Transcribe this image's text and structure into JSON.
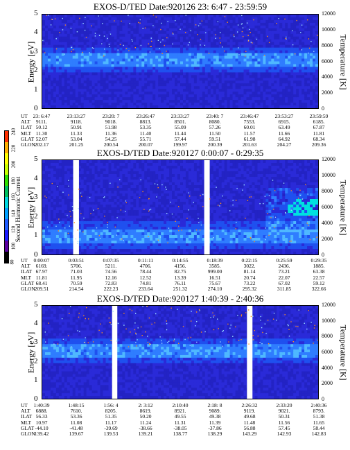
{
  "colorbar": {
    "title": "Second Harmonic Current",
    "ticks": [
      "80",
      "100",
      "120",
      "140",
      "160",
      "180",
      "200",
      "220",
      "240"
    ],
    "colors": [
      "#000000",
      "#5a00a0",
      "#1a1aff",
      "#1f5cff",
      "#00a0ff",
      "#00d8e0",
      "#00c060",
      "#30e000",
      "#c8ff00",
      "#ffff00",
      "#ffb000",
      "#ff3000"
    ]
  },
  "panels": [
    {
      "title": "EXOS-D/TED   Date:920126  23: 6:47 - 23:59:59",
      "ylabel": "Energy [eV]",
      "rlabel": "Temperature [K]",
      "yticks": [
        "0",
        "1",
        "2",
        "3",
        "4",
        "5"
      ],
      "rticks": [
        "0",
        "2000",
        "4000",
        "6000",
        "8000",
        "10000",
        "12000"
      ],
      "orbit_labels": [
        "UT",
        "ALT",
        "ILAT",
        "MLT",
        "GLAT",
        "GLON"
      ],
      "orbit_columns": [
        [
          "23: 6:47",
          "9111.",
          "50.12",
          "11.30",
          "52.07",
          "202.17"
        ],
        [
          "23:13:27",
          "9118.",
          "50.91",
          "11.33",
          "53.04",
          "201.25"
        ],
        [
          "23:20: 7",
          "9018.",
          "51.98",
          "11.36",
          "54.25",
          "200.54"
        ],
        [
          "23:26:47",
          "8813.",
          "53.35",
          "11.40",
          "55.71",
          "200.07"
        ],
        [
          "23:33:27",
          "8501.",
          "55.09",
          "11.44",
          "57.44",
          "199.97"
        ],
        [
          "23:40: 7",
          "8080.",
          "57.26",
          "11.50",
          "59.51",
          "200.39"
        ],
        [
          "23:46:47",
          "7553.",
          "60.01",
          "11.57",
          "61.98",
          "201.63"
        ],
        [
          "23:53:27",
          "6915.",
          "63.49",
          "11.66",
          "64.92",
          "204.27"
        ],
        [
          "23:59:59",
          "6185.",
          "67.87",
          "11.81",
          "68.34",
          "209.36"
        ]
      ]
    },
    {
      "title": "EXOS-D/TED   Date:920127  0:00:07 - 0:29:35",
      "ylabel": "Energy [eV]",
      "rlabel": "Temperature [K]",
      "yticks": [
        "0",
        "1",
        "2",
        "3",
        "4",
        "5"
      ],
      "rticks": [
        "0",
        "2000",
        "4000",
        "6000",
        "8000",
        "10000",
        "12000"
      ],
      "orbit_labels": [
        "UT",
        "ALT",
        "ILAT",
        "MLT",
        "GLAT",
        "GLON"
      ],
      "orbit_columns": [
        [
          "0:00:07",
          "6169.",
          "67.97",
          "11.81",
          "68.41",
          "209.51"
        ],
        [
          "0:03:51",
          "5706.",
          "71.03",
          "11.95",
          "70.59",
          "214.54"
        ],
        [
          "0:07:35",
          "5211.",
          "74.56",
          "12.16",
          "72.83",
          "222.23"
        ],
        [
          "0:11:11",
          "4706.",
          "78.44",
          "12.52",
          "74.81",
          "233.64"
        ],
        [
          "0:14:55",
          "4156.",
          "82.75",
          "13.39",
          "76.11",
          "251.32"
        ],
        [
          "0:18:39",
          "3585.",
          "999.00",
          "16.51",
          "75.67",
          "274.10"
        ],
        [
          "0:22:15",
          "3022.",
          "81.14",
          "20.74",
          "73.22",
          "295.32"
        ],
        [
          "0:25:59",
          "2436.",
          "73.21",
          "22.07",
          "67.02",
          "311.85"
        ],
        [
          "0:29:35",
          "1885.",
          "63.38",
          "22.57",
          "59.12",
          "322.66"
        ]
      ]
    },
    {
      "title": "EXOS-D/TED   Date:920127  1:40:39 - 2:40:36",
      "ylabel": "Energy [eV]",
      "rlabel": "Temperature [K]",
      "yticks": [
        "0",
        "1",
        "2",
        "3",
        "4",
        "5"
      ],
      "rticks": [
        "0",
        "2000",
        "4000",
        "6000",
        "8000",
        "10000",
        "12000"
      ],
      "orbit_labels": [
        "UT",
        "ALT",
        "ILAT",
        "MLT",
        "GLAT",
        "GLON"
      ],
      "orbit_columns": [
        [
          "1:40:39",
          "6888.",
          "56.33",
          "10.97",
          "-44.10",
          "139.42"
        ],
        [
          "1:48:15",
          "7610.",
          "53.36",
          "11.08",
          "-41.48",
          "139.67"
        ],
        [
          "1:56: 4",
          "8205.",
          "51.35",
          "11.17",
          "-39.69",
          "139.53"
        ],
        [
          "2: 3:12",
          "8619.",
          "50.20",
          "11.24",
          "-38.66",
          "139.21"
        ],
        [
          "2:10:40",
          "8921.",
          "49.55",
          "11.31",
          "-38.05",
          "138.77"
        ],
        [
          "2:18: 8",
          "9089.",
          "49.38",
          "11.39",
          "-37.86",
          "138.29"
        ],
        [
          "2:26:32",
          "9119.",
          "49.68",
          "11.48",
          "56.88",
          "143.29"
        ],
        [
          "2:33:20",
          "9021.",
          "50.31",
          "11.56",
          "57.45",
          "142.93"
        ],
        [
          "2:40:36",
          "8793.",
          "51.38",
          "11.65",
          "58.44",
          "142.83"
        ]
      ]
    }
  ],
  "chart_data": [
    {
      "type": "heatmap",
      "title": "EXOS-D/TED   Date:920126  23: 6:47 - 23:59:59",
      "ylabel": "Energy [eV]",
      "y2label": "Temperature [K]",
      "ylim": [
        0,
        5
      ],
      "y2lim": [
        0,
        12000
      ],
      "x": [
        "23: 6:47",
        "23:13:27",
        "23:20: 7",
        "23:26:47",
        "23:33:27",
        "23:40: 7",
        "23:46:47",
        "23:53:27",
        "23:59:59"
      ],
      "band_center_eV": 2.6,
      "data_gaps": []
    },
    {
      "type": "heatmap",
      "title": "EXOS-D/TED   Date:920127  0:00:07 - 0:29:35",
      "ylabel": "Energy [eV]",
      "y2label": "Temperature [K]",
      "ylim": [
        0,
        5
      ],
      "y2lim": [
        0,
        12000
      ],
      "x": [
        "0:00:07",
        "0:03:51",
        "0:07:35",
        "0:11:11",
        "0:14:55",
        "0:18:39",
        "0:22:15",
        "0:25:59",
        "0:29:35"
      ],
      "band_center_eV": 1.0,
      "data_gaps": [
        [
          0.112,
          0.133
        ],
        [
          0.587,
          0.607
        ]
      ]
    },
    {
      "type": "heatmap",
      "title": "EXOS-D/TED   Date:920127  1:40:39 - 2:40:36",
      "ylabel": "Energy [eV]",
      "y2label": "Temperature [K]",
      "ylim": [
        0,
        5
      ],
      "y2lim": [
        0,
        12000
      ],
      "x": [
        "1:40:39",
        "1:48:15",
        "1:56: 4",
        "2: 3:12",
        "2:10:40",
        "2:18: 8",
        "2:26:32",
        "2:33:20",
        "2:40:36"
      ],
      "band_center_eV": 2.6,
      "data_gaps": [
        [
          0.253,
          0.272
        ],
        [
          0.742,
          0.762
        ]
      ]
    }
  ]
}
